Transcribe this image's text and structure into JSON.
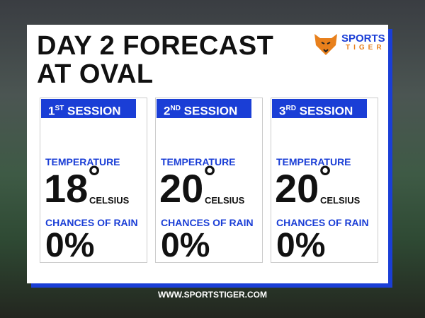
{
  "header": {
    "title_lines": [
      "DAY 2 FORECAST",
      "AT OVAL"
    ],
    "logo": {
      "top": "SPORTS",
      "bottom": "TIGER"
    }
  },
  "sessions": [
    {
      "number": "1",
      "suffix": "ST",
      "label": "SESSION",
      "temperature_label": "TEMPERATURE",
      "temperature": "18",
      "degree": "°",
      "unit": "CELSIUS",
      "rain_label": "CHANCES OF RAIN",
      "rain": "0%"
    },
    {
      "number": "2",
      "suffix": "ND",
      "label": "SESSION",
      "temperature_label": "TEMPERATURE",
      "temperature": "20",
      "degree": "°",
      "unit": "CELSIUS",
      "rain_label": "CHANCES OF RAIN",
      "rain": "0%"
    },
    {
      "number": "3",
      "suffix": "RD",
      "label": "SESSION",
      "temperature_label": "TEMPERATURE",
      "temperature": "20",
      "degree": "°",
      "unit": "CELSIUS",
      "rain_label": "CHANCES OF RAIN",
      "rain": "0%"
    }
  ],
  "footer": {
    "url": "WWW.SPORTSTIGER.COM"
  }
}
